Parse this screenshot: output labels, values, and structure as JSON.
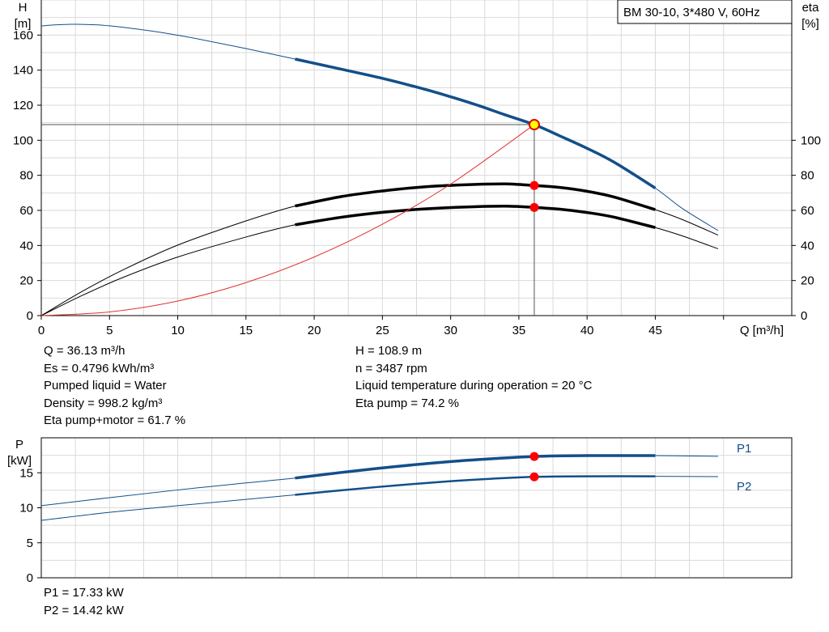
{
  "chart_data": [
    {
      "type": "line",
      "title": "BM 30-10, 3*480 V, 60Hz",
      "xlabel": "Q [m³/h]",
      "ylabel_left": [
        "H",
        "[m]"
      ],
      "ylabel_right": [
        "eta",
        "[%]"
      ],
      "xlim": [
        0,
        55
      ],
      "ylim_left": [
        0,
        180
      ],
      "ylim_right": [
        0,
        180
      ],
      "x_ticks": [
        0,
        5,
        10,
        15,
        20,
        25,
        30,
        35,
        40,
        45
      ],
      "x_tick_labels": [
        "0",
        "5",
        "10",
        "15",
        "20",
        "25",
        "30",
        "35",
        "40",
        "45"
      ],
      "y_ticks_left": [
        0,
        20,
        40,
        60,
        80,
        100,
        120,
        140,
        160
      ],
      "y_tick_labels_left": [
        "0",
        "20",
        "40",
        "60",
        "80",
        "100",
        "120",
        "140",
        "160"
      ],
      "y_ticks_right": [
        0,
        20,
        40,
        60,
        80,
        100
      ],
      "y_tick_labels_right": [
        "0",
        "20",
        "40",
        "60",
        "80",
        "100"
      ],
      "grid": true,
      "series": [
        {
          "key": "H",
          "color": "#124f8a",
          "x": [
            0,
            1,
            2,
            3,
            5,
            8,
            10,
            12,
            15,
            18.6,
            22,
            25,
            28,
            30,
            32,
            34,
            36.13,
            38,
            40,
            42,
            45,
            47,
            49.6
          ],
          "y": [
            165.2,
            165.8,
            166.1,
            166.1,
            165.3,
            162.4,
            159.9,
            157,
            152.3,
            146.3,
            140.5,
            135.3,
            129.3,
            124.8,
            119.9,
            114.5,
            108.9,
            102.5,
            95.4,
            87.4,
            72.7,
            61,
            48.5
          ],
          "bold_range": [
            18.6,
            45
          ]
        },
        {
          "key": "eta_motor",
          "color": "#000000",
          "x": [
            0,
            3,
            6,
            10,
            15,
            18.6,
            22,
            25,
            28,
            31,
            34,
            36.13,
            38,
            40,
            42,
            45,
            47,
            49.6
          ],
          "y": [
            0,
            11.5,
            21.8,
            33.4,
            44.8,
            51.8,
            56.1,
            58.9,
            60.8,
            61.9,
            62.4,
            61.7,
            60.7,
            58.8,
            56.1,
            50.2,
            45.4,
            38.1
          ],
          "bold_range": [
            18.6,
            45
          ]
        },
        {
          "key": "eta_pump",
          "color": "#000000",
          "x": [
            0,
            3,
            6,
            10,
            15,
            18.6,
            22,
            25,
            28,
            31,
            34,
            36.13,
            38,
            40,
            42,
            45,
            47,
            49.6
          ],
          "y": [
            0,
            13.8,
            26.1,
            40.2,
            54,
            62.5,
            67.9,
            71.1,
            73.4,
            74.6,
            75.1,
            74.2,
            73.1,
            70.9,
            67.6,
            60.4,
            54.7,
            45.9
          ],
          "bold_range": [
            18.6,
            45
          ]
        },
        {
          "key": "system_curve",
          "color": "#e03030",
          "x": [
            0,
            5,
            10,
            15,
            20,
            25,
            30,
            36.13
          ],
          "y": [
            0,
            2.1,
            8.3,
            18.8,
            33.4,
            52.1,
            75,
            108.9
          ]
        }
      ],
      "operating_points": [
        {
          "x": 36.13,
          "y": 108.9,
          "color": "#ffff00",
          "label": "H"
        },
        {
          "x": 36.13,
          "y": 74.2,
          "color": "#ff0000",
          "label": "eta_pump"
        },
        {
          "x": 36.13,
          "y": 61.7,
          "color": "#ff0000",
          "label": "eta_motor"
        }
      ]
    },
    {
      "type": "line",
      "xlabel": "",
      "ylabel_left": [
        "P",
        "[kW]"
      ],
      "xlim": [
        0,
        55
      ],
      "ylim": [
        0,
        20
      ],
      "y_ticks": [
        0,
        5,
        10,
        15
      ],
      "y_tick_labels": [
        "0",
        "5",
        "10",
        "15"
      ],
      "grid": true,
      "series": [
        {
          "name": "P1",
          "color": "#124f8a",
          "x": [
            0,
            5,
            10,
            15,
            18.6,
            22,
            26,
            30,
            33,
            36.13,
            40,
            45,
            49.6
          ],
          "y": [
            10.3,
            11.45,
            12.55,
            13.55,
            14.25,
            15.05,
            15.9,
            16.6,
            17.0,
            17.33,
            17.45,
            17.45,
            17.35
          ],
          "bold_range": [
            18.6,
            45
          ]
        },
        {
          "name": "P2",
          "color": "#124f8a",
          "x": [
            0,
            5,
            10,
            15,
            18.6,
            22,
            26,
            30,
            33,
            36.13,
            40,
            45,
            49.6
          ],
          "y": [
            8.2,
            9.35,
            10.3,
            11.2,
            11.85,
            12.5,
            13.2,
            13.8,
            14.15,
            14.42,
            14.5,
            14.5,
            14.45
          ],
          "bold_range": [
            18.6,
            45
          ]
        }
      ],
      "operating_points": [
        {
          "x": 36.13,
          "y": 17.33,
          "color": "#ff0000",
          "label": "P1"
        },
        {
          "x": 36.13,
          "y": 14.42,
          "color": "#ff0000",
          "label": "P2"
        }
      ]
    }
  ],
  "info": {
    "left": [
      "Q = 36.13 m³/h",
      "Es = 0.4796 kWh/m³",
      "Pumped liquid = Water",
      "Density = 998.2 kg/m³",
      "Eta pump+motor = 61.7 %"
    ],
    "right": [
      "H = 108.9 m",
      "n = 3487 rpm",
      "Liquid temperature during operation = 20 °C",
      "Eta pump = 74.2 %"
    ]
  },
  "power_info": [
    "P1 = 17.33 kW",
    "P2 = 14.42 kW"
  ]
}
